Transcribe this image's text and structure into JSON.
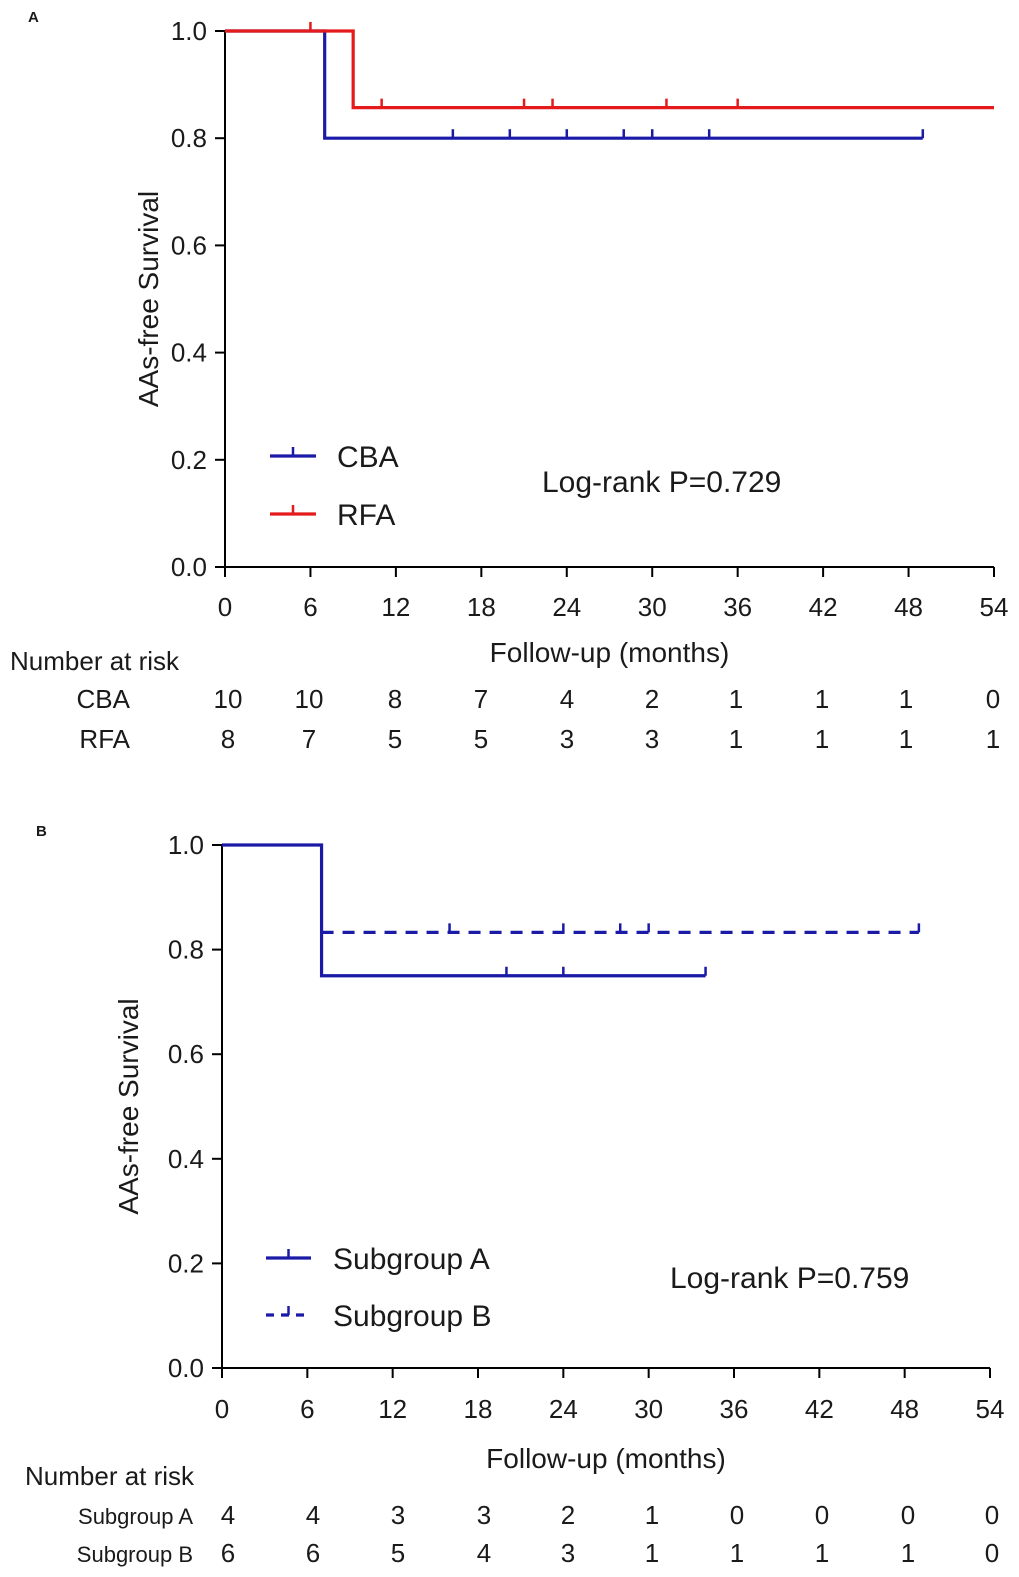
{
  "panels": [
    {
      "letter": "A",
      "chart_data": {
        "type": "line",
        "title": "",
        "xlabel": "Follow-up (months)",
        "ylabel": "AAs-free Survival",
        "xlim": [
          0,
          54
        ],
        "ylim": [
          0.0,
          1.0
        ],
        "xticks": [
          0,
          6,
          12,
          18,
          24,
          30,
          36,
          42,
          48,
          54
        ],
        "yticks": [
          "0.0",
          "0.2",
          "0.4",
          "0.6",
          "0.8",
          "1.0"
        ],
        "grid": false,
        "legend_position": "bottom-left",
        "series": [
          {
            "name": "CBA",
            "color": "#1a1aa6",
            "dash": "solid",
            "steps": [
              [
                0,
                1.0
              ],
              [
                7,
                0.8
              ]
            ],
            "end": 49,
            "censors": [
              [
                16,
                0.8
              ],
              [
                20,
                0.8
              ],
              [
                24,
                0.8
              ],
              [
                28,
                0.8
              ],
              [
                30,
                0.8
              ],
              [
                34,
                0.8
              ],
              [
                49,
                0.8
              ]
            ]
          },
          {
            "name": "RFA",
            "color": "#e41a1c",
            "dash": "solid",
            "steps": [
              [
                0,
                1.0
              ],
              [
                9,
                0.857
              ]
            ],
            "end": 54,
            "censors": [
              [
                6,
                1.0
              ],
              [
                11,
                0.857
              ],
              [
                21,
                0.857
              ],
              [
                23,
                0.857
              ],
              [
                31,
                0.857
              ],
              [
                36,
                0.857
              ]
            ]
          }
        ],
        "annotation": "Log-rank P=0.729"
      },
      "risk_table": {
        "header": "Number at risk",
        "rows": [
          {
            "group": "CBA",
            "values": [
              "10",
              "10",
              "8",
              "7",
              "4",
              "2",
              "1",
              "1",
              "1",
              "0"
            ]
          },
          {
            "group": "RFA",
            "values": [
              "8",
              "7",
              "5",
              "5",
              "3",
              "3",
              "1",
              "1",
              "1",
              "1"
            ]
          }
        ]
      }
    },
    {
      "letter": "B",
      "chart_data": {
        "type": "line",
        "title": "",
        "xlabel": "Follow-up (months)",
        "ylabel": "AAs-free Survival",
        "xlim": [
          0,
          54
        ],
        "ylim": [
          0.0,
          1.0
        ],
        "xticks": [
          0,
          6,
          12,
          18,
          24,
          30,
          36,
          42,
          48,
          54
        ],
        "yticks": [
          "0.0",
          "0.2",
          "0.4",
          "0.6",
          "0.8",
          "1.0"
        ],
        "grid": false,
        "legend_position": "bottom-left",
        "series": [
          {
            "name": "Subgroup A",
            "color": "#1a1aa6",
            "dash": "solid",
            "steps": [
              [
                0,
                1.0
              ],
              [
                7,
                0.75
              ]
            ],
            "end": 34,
            "censors": [
              [
                20,
                0.75
              ],
              [
                24,
                0.75
              ],
              [
                34,
                0.75
              ]
            ]
          },
          {
            "name": "Subgroup B",
            "color": "#1a1aa6",
            "dash": "dashed",
            "steps": [
              [
                7,
                0.833
              ]
            ],
            "end": 49,
            "censors": [
              [
                16,
                0.833
              ],
              [
                24,
                0.833
              ],
              [
                28,
                0.833
              ],
              [
                30,
                0.833
              ],
              [
                49,
                0.833
              ]
            ]
          }
        ],
        "annotation": "Log-rank P=0.759"
      },
      "risk_table": {
        "header": "Number at risk",
        "rows": [
          {
            "group": "Subgroup A",
            "values": [
              "4",
              "4",
              "3",
              "3",
              "2",
              "1",
              "0",
              "0",
              "0",
              "0"
            ]
          },
          {
            "group": "Subgroup B",
            "values": [
              "6",
              "6",
              "5",
              "4",
              "3",
              "1",
              "1",
              "1",
              "1",
              "0"
            ]
          }
        ]
      }
    }
  ]
}
